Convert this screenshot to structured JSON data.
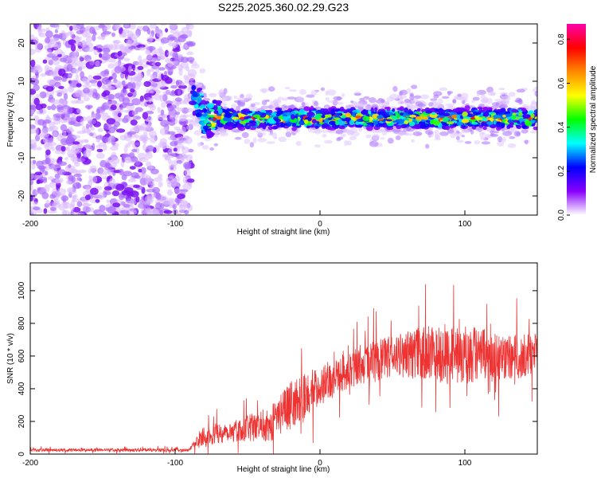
{
  "title": "S225.2025.360.02.29.G23",
  "chart_data": [
    {
      "type": "heatmap",
      "xlabel": "Height of straight line (km)",
      "ylabel": "Frequency (Hz)",
      "xlim": [
        -200,
        150
      ],
      "ylim": [
        -25,
        25
      ],
      "xticks": [
        -200,
        -100,
        0,
        100
      ],
      "yticks": [
        -20,
        -10,
        0,
        10,
        20
      ],
      "colorbar": {
        "label": "Normalized spectral amplitude",
        "range": [
          0,
          0.87
        ],
        "ticks": [
          0.0,
          0.2,
          0.4,
          0.6,
          0.8
        ],
        "colormap": [
          "#ffffff",
          "#8800ff",
          "#0000ff",
          "#00ffff",
          "#00ff00",
          "#ffff00",
          "#ff8800",
          "#ff0000",
          "#ff00aa"
        ]
      },
      "description_regions": [
        {
          "x_range": [
            -200,
            -88
          ],
          "freq_range": [
            -25,
            25
          ],
          "amplitude": 0.05,
          "pattern": "noise"
        },
        {
          "x_range": [
            -88,
            150
          ],
          "freq_center": 0,
          "freq_halfwidth": 4,
          "amplitude": 0.7,
          "pattern": "signal"
        }
      ],
      "grid": false
    },
    {
      "type": "line",
      "xlabel": "Height of straight line (km)",
      "ylabel": "SNR (10 * v/v)",
      "xlim": [
        -200,
        150
      ],
      "ylim": [
        0,
        1170
      ],
      "xticks": [
        -200,
        -100,
        0,
        100
      ],
      "yticks": [
        0,
        200,
        400,
        600,
        800,
        1000
      ],
      "color": "#ee3333",
      "trend_knots": [
        {
          "x": -200,
          "mean": 25,
          "spread": 10
        },
        {
          "x": -90,
          "mean": 25,
          "spread": 10
        },
        {
          "x": -82,
          "mean": 110,
          "spread": 60
        },
        {
          "x": -55,
          "mean": 150,
          "spread": 70
        },
        {
          "x": -35,
          "mean": 180,
          "spread": 110
        },
        {
          "x": -20,
          "mean": 300,
          "spread": 150
        },
        {
          "x": 0,
          "mean": 420,
          "spread": 120
        },
        {
          "x": 25,
          "mean": 540,
          "spread": 120
        },
        {
          "x": 50,
          "mean": 600,
          "spread": 130
        },
        {
          "x": 75,
          "mean": 620,
          "spread": 170
        },
        {
          "x": 100,
          "mean": 610,
          "spread": 200
        },
        {
          "x": 125,
          "mean": 590,
          "spread": 140
        },
        {
          "x": 150,
          "mean": 600,
          "spread": 140
        }
      ],
      "grid": false
    }
  ]
}
